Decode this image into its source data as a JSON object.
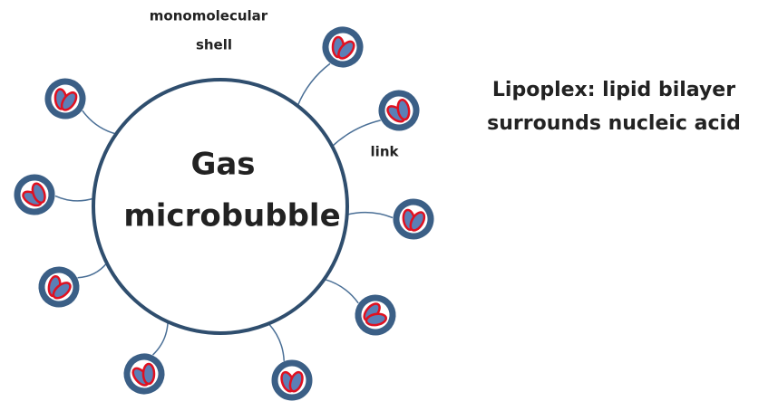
{
  "shell_label": [
    "monomolecular",
    "shell"
  ],
  "bubble_label": [
    "Gas",
    "microbubble"
  ],
  "link_label": "link",
  "lipoplex_label": [
    "Lipoplex: lipid bilayer",
    "surrounds nucleic acid"
  ]
}
